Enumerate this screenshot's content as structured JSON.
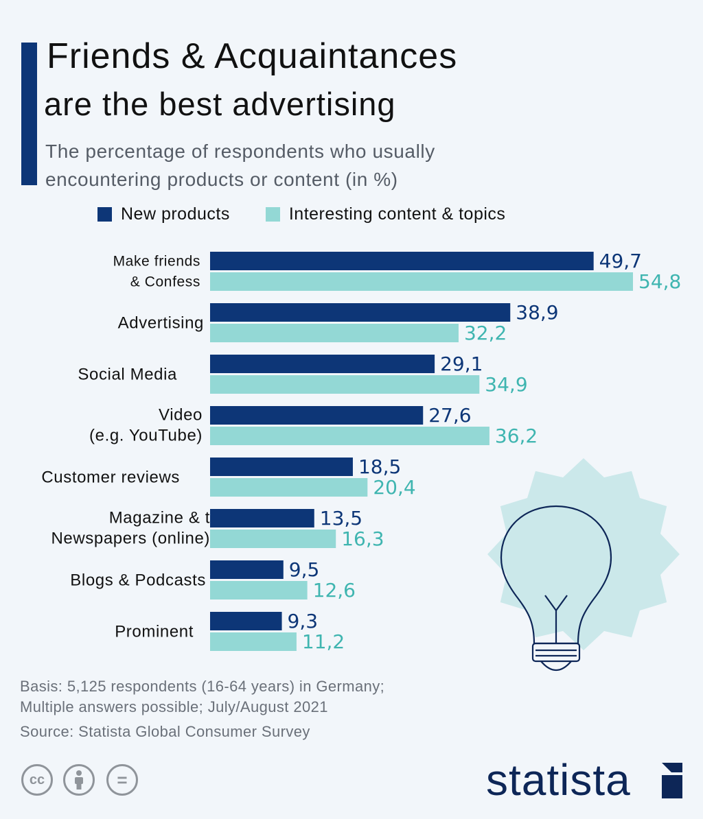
{
  "header": {
    "title_line1": "Friends & Acquaintances",
    "title_line2": "are the best advertising",
    "subtitle_line1": "The percentage of respondents who usually",
    "subtitle_line2": "encountering products or content (in %)"
  },
  "colors": {
    "accent": "#0d3677",
    "series_new": "#0d3677",
    "series_interesting": "#93d8d5",
    "label_interesting": "#3fb5b0",
    "decor": "#cbe8ea"
  },
  "chart_data": {
    "type": "bar",
    "orientation": "horizontal",
    "title": "Friends & Acquaintances are the best advertising",
    "subtitle": "The percentage of respondents who usually encountering products or content (in %)",
    "categories": [
      [
        "Make friends",
        "& Confess"
      ],
      [
        "Advertising"
      ],
      [
        "Social Media"
      ],
      [
        "Video",
        "(e.g. YouTube)"
      ],
      [
        "Customer reviews"
      ],
      [
        "Magazine & t",
        "Newspapers (online)"
      ],
      [
        "Blogs & Podcasts"
      ],
      [
        "Prominent"
      ]
    ],
    "series": [
      {
        "name": "New products",
        "values": [
          49.7,
          38.9,
          29.1,
          27.6,
          18.5,
          13.5,
          9.5,
          9.3
        ],
        "labels": [
          "49,7",
          "38,9",
          "29,1",
          "27,6",
          "18,5",
          "13,5",
          "9,5",
          "9,3"
        ]
      },
      {
        "name": "Interesting content & topics",
        "values": [
          54.8,
          32.2,
          34.9,
          36.2,
          20.4,
          16.3,
          12.6,
          11.2
        ],
        "labels": [
          "54,8",
          "32,2",
          "34,9",
          "36,2",
          "20,4",
          "16,3",
          "12,6",
          "11,2"
        ]
      }
    ],
    "xlim": [
      0,
      54.8
    ],
    "legend": "top",
    "grid": false
  },
  "footer": {
    "basis_line1": "Basis: 5,125 respondents (16-64 years) in Germany;",
    "basis_line2": "Multiple answers possible; July/August 2021",
    "source": "Source: Statista Global Consumer Survey"
  },
  "license_icons": [
    "cc-icon",
    "attribution-icon",
    "no-derivatives-icon"
  ],
  "license_labels": [
    "cc",
    "="
  ],
  "brand": {
    "name": "statista"
  }
}
